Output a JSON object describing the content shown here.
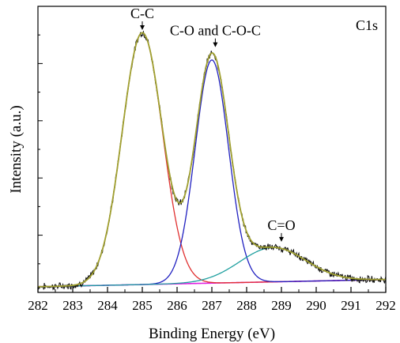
{
  "chart_data": {
    "type": "line",
    "title": "",
    "corner_label": "C1s",
    "xlabel": "Binding Energy (eV)",
    "ylabel": "Intensity (a.u.)",
    "xlim": [
      282,
      292
    ],
    "ylim": [
      0,
      1
    ],
    "x_ticks": [
      "282",
      "283",
      "284",
      "285",
      "286",
      "287",
      "288",
      "289",
      "290",
      "291",
      "292"
    ],
    "show_y_tick_labels": false,
    "grid": false,
    "baseline": {
      "color": "#e020e0",
      "start": 0.02,
      "end": 0.045
    },
    "components": [
      {
        "label": "C-C",
        "center": 285.0,
        "amplitude": 0.88,
        "sigma": 0.58,
        "color": "#e03030"
      },
      {
        "label": "C-O and C-O-C",
        "center": 287.0,
        "amplitude": 0.78,
        "sigma": 0.48,
        "color": "#2020c0"
      },
      {
        "label": "C=O",
        "center": 288.75,
        "amplitude": 0.12,
        "sigma": 0.95,
        "color": "#20a0a0"
      }
    ],
    "envelope_color": "#a0a030",
    "raw_color": "#111111",
    "annotations": [
      {
        "text": "C-C",
        "x": 285.0,
        "y": 0.92
      },
      {
        "text": "C-O and C-O-C",
        "x": 287.1,
        "y": 0.86
      },
      {
        "text": "C=O",
        "x": 289.0,
        "y": 0.18
      }
    ]
  }
}
